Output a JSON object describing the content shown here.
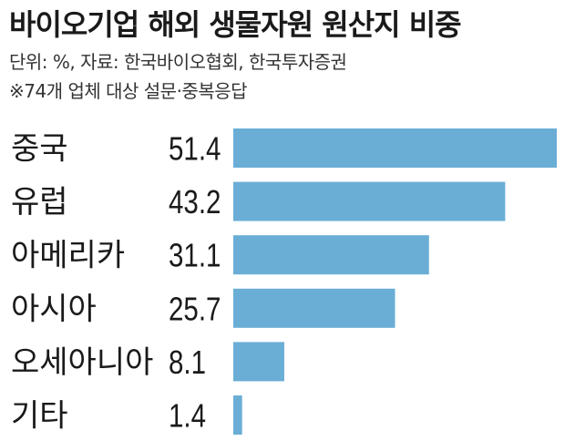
{
  "header": {
    "title": "바이오기업 해외 생물자원 원산지 비중",
    "subtitle_line1": "단위: %, 자료: 한국바이오협회, 한국투자증권",
    "subtitle_line2": "※74개 업체 대상 설문·중복응답"
  },
  "colors": {
    "bar": "#6aaed6",
    "text": "#1a1a1a"
  },
  "chart_data": {
    "type": "bar",
    "orientation": "horizontal",
    "title": "바이오기업 해외 생물자원 원산지 비중",
    "categories": [
      "중국",
      "유럽",
      "아메리카",
      "아시아",
      "오세아니아",
      "기타"
    ],
    "values": [
      51.4,
      43.2,
      31.1,
      25.7,
      8.1,
      1.4
    ],
    "value_labels": [
      "51.4",
      "43.2",
      "31.1",
      "25.7",
      "8.1",
      "1.4"
    ],
    "unit": "%",
    "xlim": [
      0,
      51.4
    ],
    "grid": false,
    "legend": false
  }
}
